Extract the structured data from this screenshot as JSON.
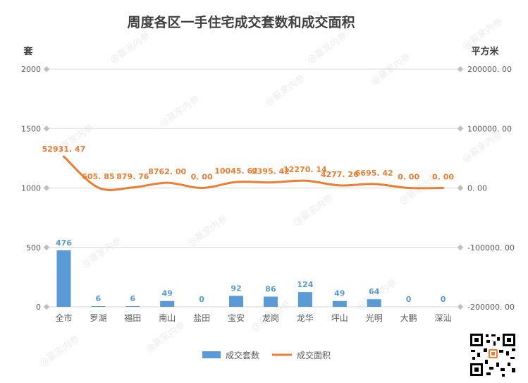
{
  "watermark": "@赢家内参",
  "chart_data": {
    "type": "bar",
    "title": "周度各区一手住宅成交套数和成交面积",
    "categories": [
      "全市",
      "罗湖",
      "福田",
      "南山",
      "盐田",
      "宝安",
      "龙岗",
      "龙华",
      "坪山",
      "光明",
      "大鹏",
      "深汕"
    ],
    "series": [
      {
        "name": "成交套数",
        "type": "bar",
        "axis": "left",
        "color": "#5b9bd5",
        "values": [
          476,
          6,
          6,
          49,
          0,
          92,
          86,
          124,
          49,
          64,
          0,
          0
        ],
        "labels": [
          "476",
          "6",
          "6",
          "49",
          "0",
          "92",
          "86",
          "124",
          "49",
          "64",
          "0",
          "0"
        ]
      },
      {
        "name": "成交面积",
        "type": "line",
        "smooth": true,
        "axis": "right",
        "color": "#ed7d31",
        "values": [
          52931.47,
          605.85,
          879.76,
          8762.0,
          0.0,
          10045.62,
          9395.42,
          12270.14,
          4277.26,
          6695.42,
          0.0,
          0.0
        ],
        "labels": [
          "52931. 47",
          "605. 85",
          "879. 76",
          "8762. 00",
          "0. 00",
          "10045. 62",
          "9395. 42",
          "12270. 14",
          "4277. 26",
          "6695. 42",
          "0. 00",
          "0. 00"
        ]
      }
    ],
    "y_left": {
      "label": "套",
      "ylim": [
        0,
        2000
      ],
      "ticks": [
        0,
        500,
        1000,
        1500,
        2000
      ],
      "tick_labels": [
        "0",
        "500",
        "1000",
        "1500",
        "2000"
      ]
    },
    "y_right": {
      "label": "平方米",
      "ylim": [
        -200000,
        200000
      ],
      "ticks": [
        -200000,
        -100000,
        0,
        100000,
        200000
      ],
      "tick_labels": [
        "-200000. 00",
        "-100000. 00",
        "0. 00",
        "100000. 00",
        "200000. 00"
      ]
    },
    "grid": true,
    "legend_position": "bottom",
    "colors": {
      "grid": "#d9d9d9",
      "axis_text": "#595959",
      "title": "#404040",
      "label_bar": "#5b9bd5",
      "label_line": "#ed7d31"
    }
  }
}
